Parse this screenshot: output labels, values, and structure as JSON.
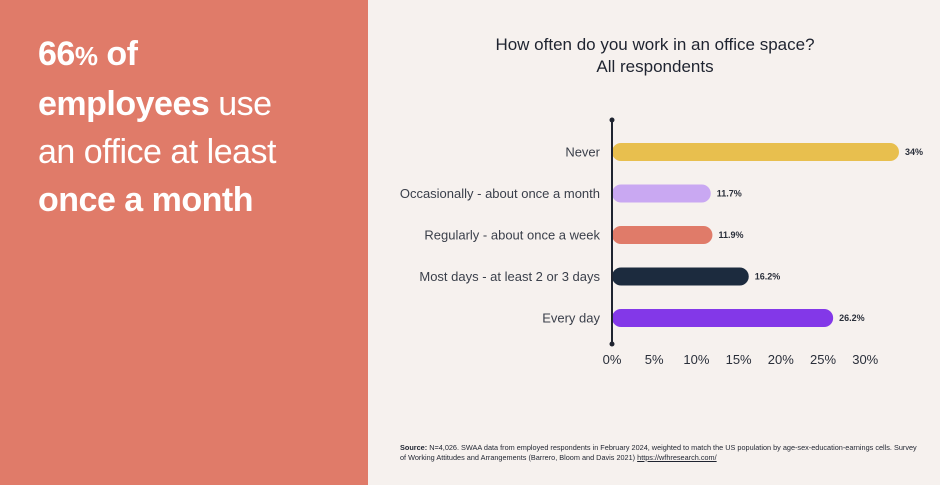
{
  "headline": {
    "stat_number": "66",
    "stat_unit": "%",
    "stat_rest": " of",
    "line2_bold": "employees",
    "line2_rest": " use",
    "line3": "an office at least",
    "line4_bold": "once a month"
  },
  "chart_data": {
    "type": "bar",
    "orientation": "horizontal",
    "title": "How often do you work in an office space?",
    "subtitle": "All respondents",
    "categories": [
      "Never",
      "Occasionally - about once a month",
      "Regularly - about once a week",
      "Most days - at least 2 or 3 days",
      "Every day"
    ],
    "values": [
      34,
      11.7,
      11.9,
      16.2,
      26.2
    ],
    "value_labels": [
      "34%",
      "11.7%",
      "11.9%",
      "16.2%",
      "26.2%"
    ],
    "colors": [
      "#e8bf4e",
      "#c9a8f2",
      "#e07b69",
      "#1c2b3e",
      "#8338e8"
    ],
    "xlim": [
      0,
      34
    ],
    "x_ticks": [
      "0%",
      "5%",
      "10%",
      "15%",
      "20%",
      "25%",
      "30%"
    ],
    "x_tick_values": [
      0,
      5,
      10,
      15,
      20,
      25,
      30
    ],
    "xlabel": "",
    "ylabel": "",
    "grid": false,
    "legend": "none"
  },
  "source": {
    "title": "Source:",
    "text": " N=4,026. SWAA data from employed respondents in February 2024, weighted to match the US population by age-sex-education-earnings cells. Survey of Working Attitudes and Arrangements (Barrero, Bloom and Davis 2021) ",
    "link": "https://wfhresearch.com/"
  },
  "colors": {
    "left_panel": "#e07b69",
    "background": "#f6f1ee",
    "axis": "#1f2430"
  }
}
